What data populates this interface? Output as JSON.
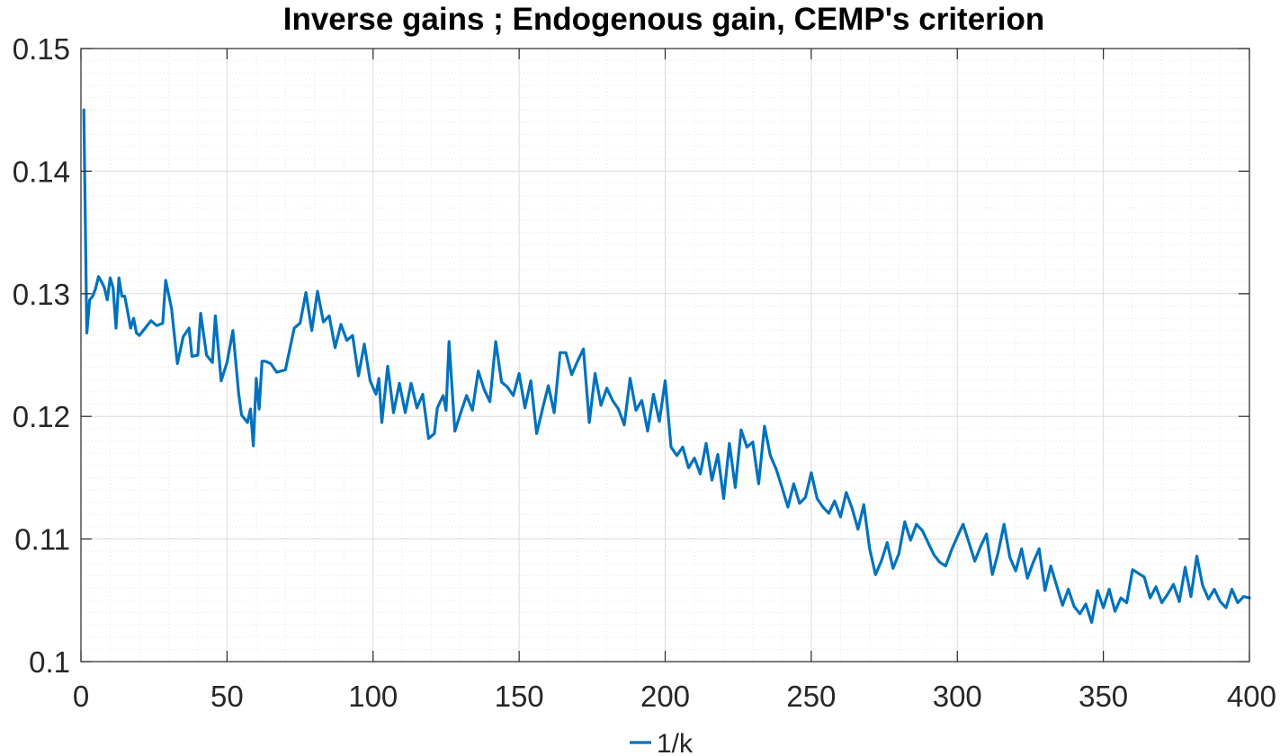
{
  "chart_data": {
    "type": "line",
    "title": "Inverse gains ; Endogenous gain, CEMP's criterion",
    "xlabel": "",
    "ylabel": "",
    "xlim": [
      0,
      400
    ],
    "ylim": [
      0.1,
      0.15
    ],
    "xticks": [
      "0",
      "50",
      "100",
      "150",
      "200",
      "250",
      "300",
      "350",
      "400"
    ],
    "yticks": [
      "0.1",
      "0.11",
      "0.12",
      "0.13",
      "0.14",
      "0.15"
    ],
    "grid": true,
    "minor_grid": true,
    "legend": {
      "position": "bottom-center",
      "entries": [
        "1/k"
      ]
    },
    "series": [
      {
        "name": "1/k",
        "color": "#0072BD",
        "x": [
          1,
          2,
          3,
          4,
          5,
          6,
          7,
          8,
          9,
          10,
          11,
          12,
          13,
          14,
          15,
          16,
          17,
          18,
          19,
          20,
          22,
          24,
          26,
          28,
          29,
          31,
          33,
          35,
          37,
          38,
          40,
          41,
          43,
          45,
          46,
          48,
          50,
          52,
          54,
          55,
          57,
          58,
          59,
          60,
          61,
          62,
          63,
          65,
          67,
          70,
          73,
          75,
          77,
          79,
          81,
          83,
          85,
          87,
          89,
          91,
          93,
          95,
          97,
          99,
          101,
          102,
          103,
          105,
          107,
          109,
          111,
          113,
          115,
          117,
          119,
          121,
          122,
          123,
          124,
          125,
          126,
          128,
          130,
          132,
          134,
          136,
          138,
          140,
          142,
          144,
          146,
          148,
          150,
          152,
          154,
          156,
          158,
          160,
          162,
          164,
          166,
          168,
          170,
          172,
          174,
          176,
          178,
          180,
          182,
          184,
          186,
          188,
          190,
          192,
          194,
          196,
          198,
          200,
          202,
          204,
          206,
          208,
          210,
          212,
          214,
          216,
          218,
          220,
          222,
          224,
          226,
          228,
          230,
          232,
          234,
          236,
          238,
          240,
          242,
          244,
          246,
          248,
          250,
          252,
          254,
          256,
          258,
          260,
          262,
          264,
          266,
          268,
          270,
          272,
          274,
          276,
          278,
          280,
          282,
          284,
          286,
          288,
          290,
          292,
          294,
          296,
          298,
          300,
          302,
          304,
          306,
          308,
          310,
          312,
          314,
          316,
          318,
          320,
          322,
          324,
          326,
          328,
          330,
          332,
          334,
          336,
          338,
          340,
          342,
          344,
          346,
          348,
          350,
          352,
          354,
          356,
          358,
          360,
          362,
          364,
          366,
          368,
          370,
          372,
          374,
          376,
          378,
          380,
          382,
          384,
          386,
          388,
          390,
          392,
          394,
          396,
          398,
          400
        ],
        "values": [
          0.145,
          0.1268,
          0.1295,
          0.1298,
          0.1304,
          0.1314,
          0.131,
          0.1305,
          0.1295,
          0.1313,
          0.1305,
          0.1272,
          0.1313,
          0.1298,
          0.1298,
          0.1285,
          0.1272,
          0.128,
          0.1268,
          0.1266,
          0.1272,
          0.1278,
          0.1274,
          0.1276,
          0.1311,
          0.1288,
          0.1243,
          0.1265,
          0.1272,
          0.1249,
          0.125,
          0.1284,
          0.125,
          0.1244,
          0.1282,
          0.1229,
          0.1244,
          0.127,
          0.1218,
          0.1201,
          0.1195,
          0.1206,
          0.1176,
          0.1231,
          0.1206,
          0.1245,
          0.1245,
          0.1243,
          0.1236,
          0.1238,
          0.1272,
          0.1276,
          0.1301,
          0.127,
          0.1302,
          0.1277,
          0.1282,
          0.1256,
          0.1275,
          0.1262,
          0.1266,
          0.1233,
          0.1259,
          0.1229,
          0.1218,
          0.1231,
          0.1195,
          0.1241,
          0.1203,
          0.1227,
          0.1203,
          0.1227,
          0.1207,
          0.1218,
          0.1182,
          0.1186,
          0.1207,
          0.1212,
          0.1217,
          0.1205,
          0.1261,
          0.1188,
          0.1203,
          0.1217,
          0.1205,
          0.1237,
          0.1222,
          0.1212,
          0.1261,
          0.1228,
          0.1224,
          0.1217,
          0.1235,
          0.1207,
          0.1229,
          0.1186,
          0.1206,
          0.1225,
          0.1203,
          0.1252,
          0.1252,
          0.1234,
          0.1245,
          0.1255,
          0.1195,
          0.1235,
          0.1209,
          0.1223,
          0.1213,
          0.1206,
          0.1193,
          0.1231,
          0.1205,
          0.1213,
          0.1188,
          0.1218,
          0.1196,
          0.1229,
          0.1175,
          0.1168,
          0.1175,
          0.1158,
          0.1166,
          0.1153,
          0.1178,
          0.1148,
          0.1169,
          0.1133,
          0.1178,
          0.1142,
          0.1189,
          0.1175,
          0.1179,
          0.1145,
          0.1192,
          0.1168,
          0.1157,
          0.1142,
          0.1126,
          0.1145,
          0.1129,
          0.1134,
          0.1154,
          0.1133,
          0.1126,
          0.1121,
          0.1131,
          0.1118,
          0.1138,
          0.1125,
          0.1108,
          0.1128,
          0.1092,
          0.1071,
          0.1082,
          0.1097,
          0.1076,
          0.1088,
          0.1114,
          0.1099,
          0.1112,
          0.1107,
          0.1097,
          0.1087,
          0.1081,
          0.1078,
          0.1091,
          0.1102,
          0.1112,
          0.1097,
          0.1082,
          0.1094,
          0.1104,
          0.1071,
          0.1089,
          0.1112,
          0.1085,
          0.1074,
          0.1092,
          0.1068,
          0.1081,
          0.1092,
          0.1058,
          0.1078,
          0.1062,
          0.1046,
          0.1059,
          0.1045,
          0.1039,
          0.1047,
          0.1032,
          0.1058,
          0.1044,
          0.1059,
          0.1041,
          0.1052,
          0.1048,
          0.1075,
          0.1072,
          0.1069,
          0.1052,
          0.1061,
          0.1048,
          0.1055,
          0.1063,
          0.1049,
          0.1077,
          0.1053,
          0.1086,
          0.1062,
          0.1051,
          0.1059,
          0.1049,
          0.1044,
          0.1059,
          0.1048,
          0.1053,
          0.1052
        ]
      }
    ]
  }
}
